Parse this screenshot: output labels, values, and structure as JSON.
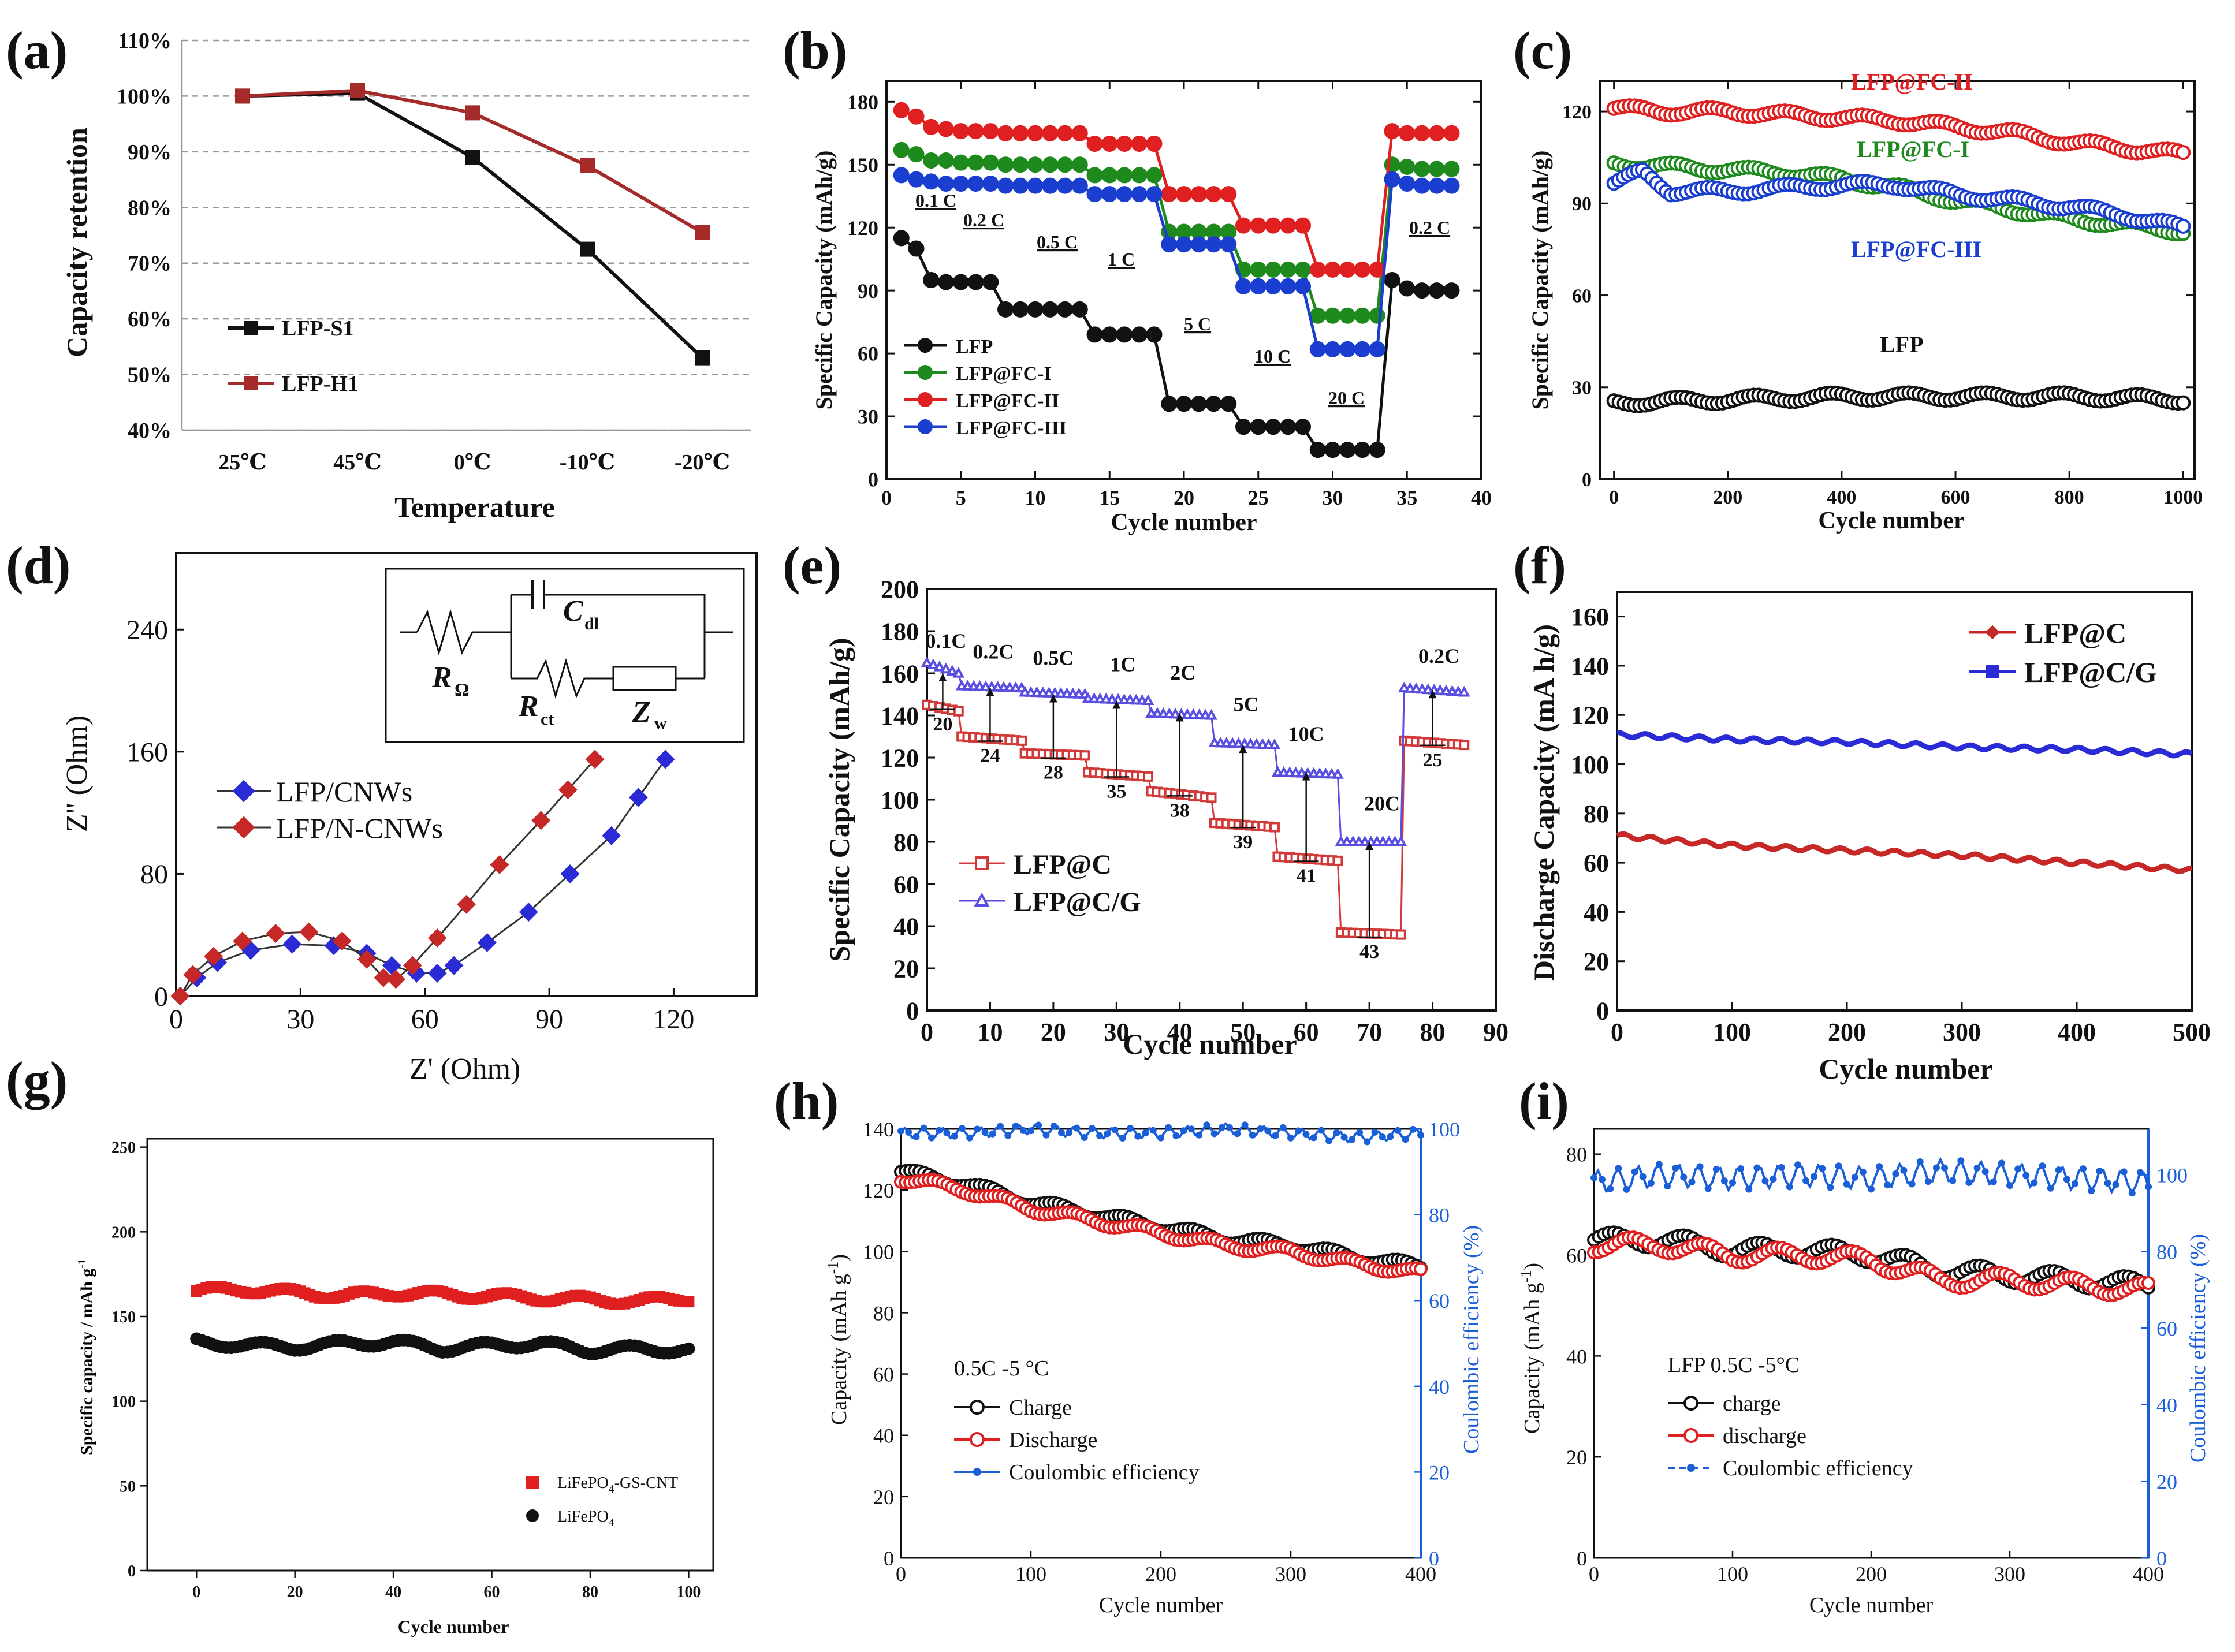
{
  "figure": {
    "panel_labels": [
      "(a)",
      "(b)",
      "(c)",
      "(d)",
      "(e)",
      "(f)",
      "(g)",
      "(h)",
      "(i)"
    ]
  },
  "chart_data": [
    {
      "id": "a",
      "type": "line",
      "xlabel": "Temperature",
      "ylabel": "Capacity retention",
      "categories": [
        "25℃",
        "45℃",
        "0℃",
        "-10℃",
        "-20℃"
      ],
      "yticks": [
        "40%",
        "50%",
        "60%",
        "70%",
        "80%",
        "90%",
        "100%",
        "110%"
      ],
      "ylim": [
        40,
        110
      ],
      "grid": "horizontal dashed",
      "series": [
        {
          "name": "LFP-S1",
          "color": "#111111",
          "values": [
            100,
            100.5,
            89,
            72.5,
            53
          ]
        },
        {
          "name": "LFP-H1",
          "color": "#a52a2a",
          "values": [
            100,
            101,
            97,
            87.5,
            75.5
          ]
        }
      ]
    },
    {
      "id": "b",
      "type": "line",
      "xlabel": "Cycle number",
      "ylabel": "Specific Capacity (mAh/g)",
      "xlim": [
        0,
        40
      ],
      "ylim": [
        0,
        190
      ],
      "xticks": [
        "0",
        "5",
        "10",
        "15",
        "20",
        "25",
        "30",
        "35",
        "40"
      ],
      "yticks": [
        "0",
        "30",
        "60",
        "90",
        "120",
        "150",
        "180"
      ],
      "rate_labels": [
        "0.1 C",
        "0.2 C",
        "0.5 C",
        "1 C",
        "5 C",
        "10 C",
        "20 C",
        "0.2 C"
      ],
      "series": [
        {
          "name": "LFP",
          "color": "#111111",
          "values": [
            115,
            110,
            95,
            94,
            94,
            94,
            94,
            81,
            81,
            81,
            81,
            81,
            81,
            69,
            69,
            69,
            69,
            69,
            36,
            36,
            36,
            36,
            36,
            25,
            25,
            25,
            25,
            25,
            14,
            14,
            14,
            14,
            14,
            95,
            91,
            90,
            90,
            90
          ]
        },
        {
          "name": "LFP@FC-I",
          "color": "#1e8a1e",
          "values": [
            157,
            155,
            152,
            152,
            151,
            151,
            151,
            150,
            150,
            150,
            150,
            150,
            150,
            145,
            145,
            145,
            145,
            145,
            118,
            118,
            118,
            118,
            118,
            100,
            100,
            100,
            100,
            100,
            78,
            78,
            78,
            78,
            78,
            150,
            149,
            148,
            148,
            148
          ]
        },
        {
          "name": "LFP@FC-II",
          "color": "#e02020",
          "values": [
            176,
            173,
            168,
            167,
            166,
            166,
            166,
            165,
            165,
            165,
            165,
            165,
            165,
            160,
            160,
            160,
            160,
            160,
            136,
            136,
            136,
            136,
            136,
            121,
            121,
            121,
            121,
            121,
            100,
            100,
            100,
            100,
            100,
            166,
            165,
            165,
            165,
            165
          ]
        },
        {
          "name": "LFP@FC-III",
          "color": "#1a3fd0",
          "values": [
            145,
            143,
            142,
            141,
            141,
            141,
            141,
            140,
            140,
            140,
            140,
            140,
            140,
            136,
            136,
            136,
            136,
            136,
            112,
            112,
            112,
            112,
            112,
            92,
            92,
            92,
            92,
            92,
            62,
            62,
            62,
            62,
            62,
            143,
            141,
            140,
            140,
            140
          ]
        }
      ]
    },
    {
      "id": "c",
      "type": "line",
      "xlabel": "Cycle number",
      "ylabel": "Specific Capacity (mAh/g)",
      "xlim": [
        0,
        1000
      ],
      "ylim": [
        0,
        130
      ],
      "xticks": [
        "0",
        "200",
        "400",
        "600",
        "800",
        "1000"
      ],
      "yticks": [
        "0",
        "30",
        "60",
        "90",
        "120"
      ],
      "series": [
        {
          "name": "LFP@FC-II",
          "color": "#e02020",
          "x": [
            0,
            100,
            200,
            300,
            400,
            500,
            600,
            700,
            800,
            900,
            1000
          ],
          "values": [
            121,
            120,
            120,
            119,
            118,
            117,
            115,
            113,
            110,
            108,
            106
          ]
        },
        {
          "name": "LFP@FC-I",
          "color": "#1e8a1e",
          "x": [
            0,
            100,
            200,
            300,
            400,
            500,
            600,
            700,
            800,
            900,
            1000
          ],
          "values": [
            103,
            102,
            101,
            100,
            98,
            95,
            91,
            88,
            85,
            83,
            81
          ]
        },
        {
          "name": "LFP@FC-III",
          "color": "#1a3fd0",
          "x": [
            0,
            50,
            100,
            200,
            300,
            400,
            500,
            600,
            700,
            800,
            900,
            1000
          ],
          "values": [
            97,
            100,
            94,
            94,
            95,
            96,
            96,
            93,
            91,
            89,
            86,
            82
          ]
        },
        {
          "name": "LFP",
          "color": "#111111",
          "x": [
            0,
            200,
            400,
            600,
            800,
            1000
          ],
          "values": [
            25,
            26,
            27,
            27,
            27,
            26
          ]
        }
      ]
    },
    {
      "id": "d",
      "type": "scatter",
      "xlabel": "Z' (Ohm)",
      "ylabel": "Z'' (Ohm)",
      "xlim": [
        0,
        140
      ],
      "ylim": [
        0,
        280
      ],
      "xticks": [
        "0",
        "30",
        "60",
        "90",
        "120"
      ],
      "yticks": [
        "0",
        "80",
        "160",
        "240"
      ],
      "inset_labels": {
        "r_omega": "R",
        "r_omega_sub": "Ω",
        "c_dl": "C",
        "c_dl_sub": "dl",
        "r_ct": "R",
        "r_ct_sub": "ct",
        "z_w": "Z",
        "z_w_sub": "w"
      },
      "series": [
        {
          "name": "LFP/CNWs",
          "color": "#2b2bd6",
          "x": [
            1,
            5,
            10,
            18,
            28,
            38,
            46,
            52,
            58,
            63,
            67,
            75,
            85,
            95,
            105,
            118
          ],
          "values": [
            0,
            12,
            22,
            30,
            34,
            33,
            28,
            20,
            15,
            15,
            20,
            35,
            55,
            80,
            105,
            155
          ]
        },
        {
          "name": "LFP/N-CNWs",
          "color": "#c62828",
          "x": [
            1,
            4,
            9,
            16,
            24,
            32,
            40,
            46,
            50,
            53,
            57,
            63,
            70,
            78,
            88,
            101
          ],
          "values": [
            0,
            14,
            26,
            36,
            41,
            42,
            36,
            24,
            12,
            11,
            20,
            38,
            60,
            86,
            115,
            155
          ]
        }
      ]
    },
    {
      "id": "e",
      "type": "line",
      "xlabel": "Cycle number",
      "ylabel": "Specific Capacity (mAh/g)",
      "xlim": [
        0,
        90
      ],
      "ylim": [
        0,
        200
      ],
      "xticks": [
        "0",
        "10",
        "20",
        "30",
        "40",
        "50",
        "60",
        "70",
        "80",
        "90"
      ],
      "yticks": [
        "0",
        "20",
        "40",
        "60",
        "80",
        "100",
        "120",
        "140",
        "160",
        "180",
        "200"
      ],
      "rate_labels": [
        "0.1C",
        "0.2C",
        "0.5C",
        "1C",
        "2C",
        "5C",
        "10C",
        "20C",
        "0.2C"
      ],
      "annotations": [
        "20",
        "24",
        "28",
        "35",
        "38",
        "39",
        "41",
        "43",
        "25"
      ],
      "series": [
        {
          "name": "LFP@C",
          "color": "#d23a3a",
          "x": [
            0,
            5,
            5.5,
            15,
            15.5,
            25,
            25.5,
            35,
            35.5,
            45,
            45.5,
            55,
            55.5,
            65,
            65.5,
            75,
            75.5,
            85
          ],
          "values": [
            145,
            142,
            130,
            128,
            122,
            121,
            113,
            111,
            104,
            101,
            89,
            87,
            73,
            71,
            37,
            36,
            128,
            126
          ]
        },
        {
          "name": "LFP@C/G",
          "color": "#5a4ee0",
          "x": [
            0,
            5,
            5.5,
            15,
            15.5,
            25,
            25.5,
            35,
            35.5,
            45,
            45.5,
            55,
            55.5,
            65,
            65.5,
            75,
            75.5,
            85
          ],
          "values": [
            165,
            160,
            154,
            153,
            151,
            150,
            148,
            147,
            141,
            140,
            127,
            126,
            113,
            112,
            80,
            80,
            153,
            151
          ]
        }
      ]
    },
    {
      "id": "f",
      "type": "line",
      "xlabel": "Cycle number",
      "ylabel": "Discharge Capacity (mA h/g)",
      "xlim": [
        0,
        500
      ],
      "ylim": [
        0,
        170
      ],
      "xticks": [
        "0",
        "100",
        "200",
        "300",
        "400",
        "500"
      ],
      "yticks": [
        "0",
        "20",
        "40",
        "60",
        "80",
        "100",
        "120",
        "140",
        "160"
      ],
      "series": [
        {
          "name": "LFP@C",
          "color": "#c62828",
          "x": [
            0,
            100,
            200,
            300,
            400,
            500
          ],
          "values": [
            71,
            67,
            65,
            63,
            60,
            57
          ]
        },
        {
          "name": "LFP@C/G",
          "color": "#2b2bd6",
          "x": [
            0,
            100,
            200,
            300,
            400,
            500
          ],
          "values": [
            112,
            110,
            109,
            107,
            106,
            104
          ]
        }
      ]
    },
    {
      "id": "g",
      "type": "scatter",
      "xlabel": "Cycle number",
      "ylabel": "Specific capacity / mAh g",
      "ylabel_sup": "-1",
      "xlim": [
        -10,
        105
      ],
      "ylim": [
        0,
        255
      ],
      "xticks": [
        "0",
        "20",
        "40",
        "60",
        "80",
        "100"
      ],
      "yticks": [
        "0",
        "50",
        "100",
        "150",
        "200",
        "250"
      ],
      "series": [
        {
          "name": "LiFePO",
          "sub": "4",
          "suffix": "-GS-CNT",
          "color": "#e02020",
          "x": [
            0,
            10,
            20,
            30,
            40,
            50,
            60,
            70,
            80,
            90,
            100
          ],
          "values": [
            165,
            166,
            164,
            162,
            164,
            163,
            162,
            161,
            160,
            159,
            161
          ]
        },
        {
          "name": "LiFePO",
          "sub": "4",
          "suffix": "",
          "color": "#111111",
          "x": [
            0,
            10,
            20,
            30,
            40,
            50,
            60,
            70,
            80,
            90,
            100
          ],
          "values": [
            135,
            133,
            132,
            134,
            135,
            131,
            133,
            134,
            130,
            131,
            130
          ]
        }
      ]
    },
    {
      "id": "h",
      "type": "scatter",
      "xlabel": "Cycle number",
      "ylabel": "Capacity (mAh g",
      "ylabel_sup": "-1",
      "ylabel_close": ")",
      "y2label": "Coulombic efficiency (%)",
      "xlim": [
        0,
        400
      ],
      "ylim": [
        0,
        140
      ],
      "y2lim": [
        0,
        100
      ],
      "xticks": [
        "0",
        "100",
        "200",
        "300",
        "400"
      ],
      "yticks": [
        "0",
        "20",
        "40",
        "60",
        "80",
        "100",
        "120",
        "140"
      ],
      "y2ticks": [
        "0",
        "20",
        "40",
        "60",
        "80",
        "100"
      ],
      "condition": "0.5C -5 °C",
      "series": [
        {
          "name": "Charge",
          "color": "#111111",
          "x": [
            0,
            50,
            100,
            150,
            200,
            250,
            300,
            350,
            400
          ],
          "values": [
            126,
            122,
            116,
            112,
            108,
            104,
            102,
            98,
            95
          ]
        },
        {
          "name": "Discharge",
          "color": "#e02020",
          "x": [
            0,
            50,
            100,
            150,
            200,
            250,
            300,
            350,
            400
          ],
          "values": [
            124,
            120,
            114,
            110,
            106,
            102,
            100,
            96,
            93
          ]
        },
        {
          "name": "Coulombic efficiency",
          "color": "#1a5fd8",
          "axis": "y2",
          "x": [
            0,
            50,
            100,
            150,
            200,
            250,
            300,
            350,
            400
          ],
          "values": [
            99,
            99,
            100,
            99,
            99,
            100,
            99,
            98,
            99
          ]
        }
      ]
    },
    {
      "id": "i",
      "type": "scatter",
      "xlabel": "Cycle number",
      "ylabel": "Capacity (mAh g",
      "ylabel_sup": "-1",
      "ylabel_close": ")",
      "y2label": "Coulombic efficiency (%)",
      "xlim": [
        0,
        400
      ],
      "ylim": [
        0,
        85
      ],
      "y2lim": [
        0,
        112
      ],
      "xticks": [
        "0",
        "100",
        "200",
        "300",
        "400"
      ],
      "yticks": [
        "0",
        "20",
        "40",
        "60",
        "80"
      ],
      "y2ticks": [
        "0",
        "20",
        "40",
        "60",
        "80",
        "100"
      ],
      "condition": "LFP 0.5C -5°C",
      "series": [
        {
          "name": "charge",
          "color": "#111111",
          "x": [
            0,
            50,
            100,
            150,
            200,
            250,
            300,
            350,
            400
          ],
          "values": [
            63,
            63,
            61,
            61,
            60,
            57,
            56,
            55,
            54
          ]
        },
        {
          "name": "discharge",
          "color": "#e02020",
          "x": [
            0,
            50,
            100,
            150,
            200,
            250,
            300,
            350,
            400
          ],
          "values": [
            62,
            62,
            60,
            60,
            59,
            55,
            55,
            54,
            53
          ]
        },
        {
          "name": "Coulombic efficiency",
          "color": "#1a5fd8",
          "axis": "y2",
          "x": [
            0,
            50,
            100,
            150,
            200,
            250,
            300,
            350,
            400
          ],
          "values": [
            98,
            100,
            99,
            100,
            99,
            101,
            100,
            99,
            98
          ]
        }
      ]
    }
  ]
}
